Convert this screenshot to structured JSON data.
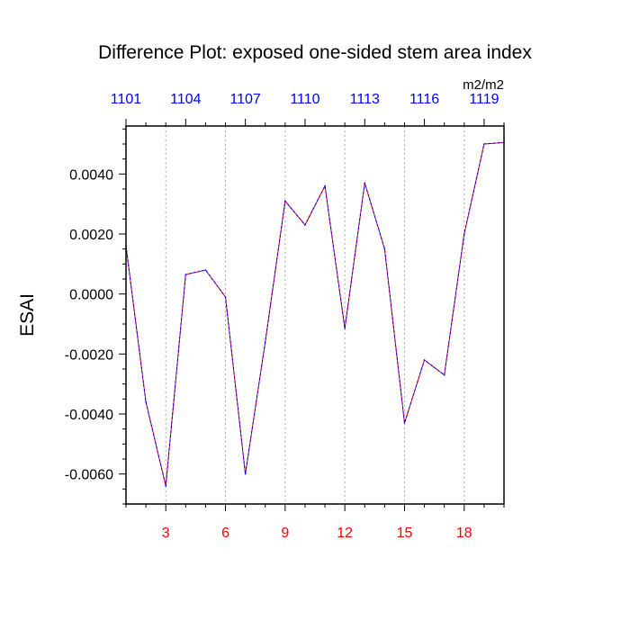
{
  "chart_data": {
    "type": "line",
    "title": "Difference Plot: exposed one-sided stem area index",
    "units": "m2/m2",
    "ylabel": "ESAI",
    "xlabel": "",
    "xlim": [
      1,
      20
    ],
    "ylim": [
      -0.007,
      0.0056
    ],
    "x_ticks": [
      3,
      6,
      9,
      12,
      15,
      18
    ],
    "x_tick_color": "#ff0000",
    "top_ticks": [
      {
        "x": 1,
        "label": "1101"
      },
      {
        "x": 4,
        "label": "1104"
      },
      {
        "x": 7,
        "label": "1107"
      },
      {
        "x": 10,
        "label": "1110"
      },
      {
        "x": 13,
        "label": "1113"
      },
      {
        "x": 16,
        "label": "1116"
      },
      {
        "x": 19,
        "label": "1119"
      }
    ],
    "top_tick_color": "#0000ff",
    "y_ticks": [
      {
        "value": 0.004,
        "label": "0.0040"
      },
      {
        "value": 0.002,
        "label": "0.0020"
      },
      {
        "value": 0.0,
        "label": "0.0000"
      },
      {
        "value": -0.002,
        "label": "-0.0020"
      },
      {
        "value": -0.004,
        "label": "-0.0040"
      },
      {
        "value": -0.006,
        "label": "-0.0060"
      }
    ],
    "grid": "vertical dotted at bottom ticks",
    "series": [
      {
        "colors": [
          "#ff0000",
          "#0000ff"
        ],
        "x": [
          1,
          2,
          3,
          4,
          5,
          6,
          7,
          8,
          9,
          10,
          11,
          12,
          13,
          14,
          15,
          16,
          17,
          18,
          19,
          20
        ],
        "values": [
          0.0016,
          -0.0036,
          -0.0064,
          0.00065,
          0.0008,
          -0.0001,
          -0.006,
          -0.0016,
          0.0031,
          0.0023,
          0.0036,
          -0.00115,
          0.0037,
          0.0015,
          -0.0043,
          -0.0022,
          -0.0027,
          0.002,
          0.005,
          0.00505
        ]
      }
    ]
  }
}
